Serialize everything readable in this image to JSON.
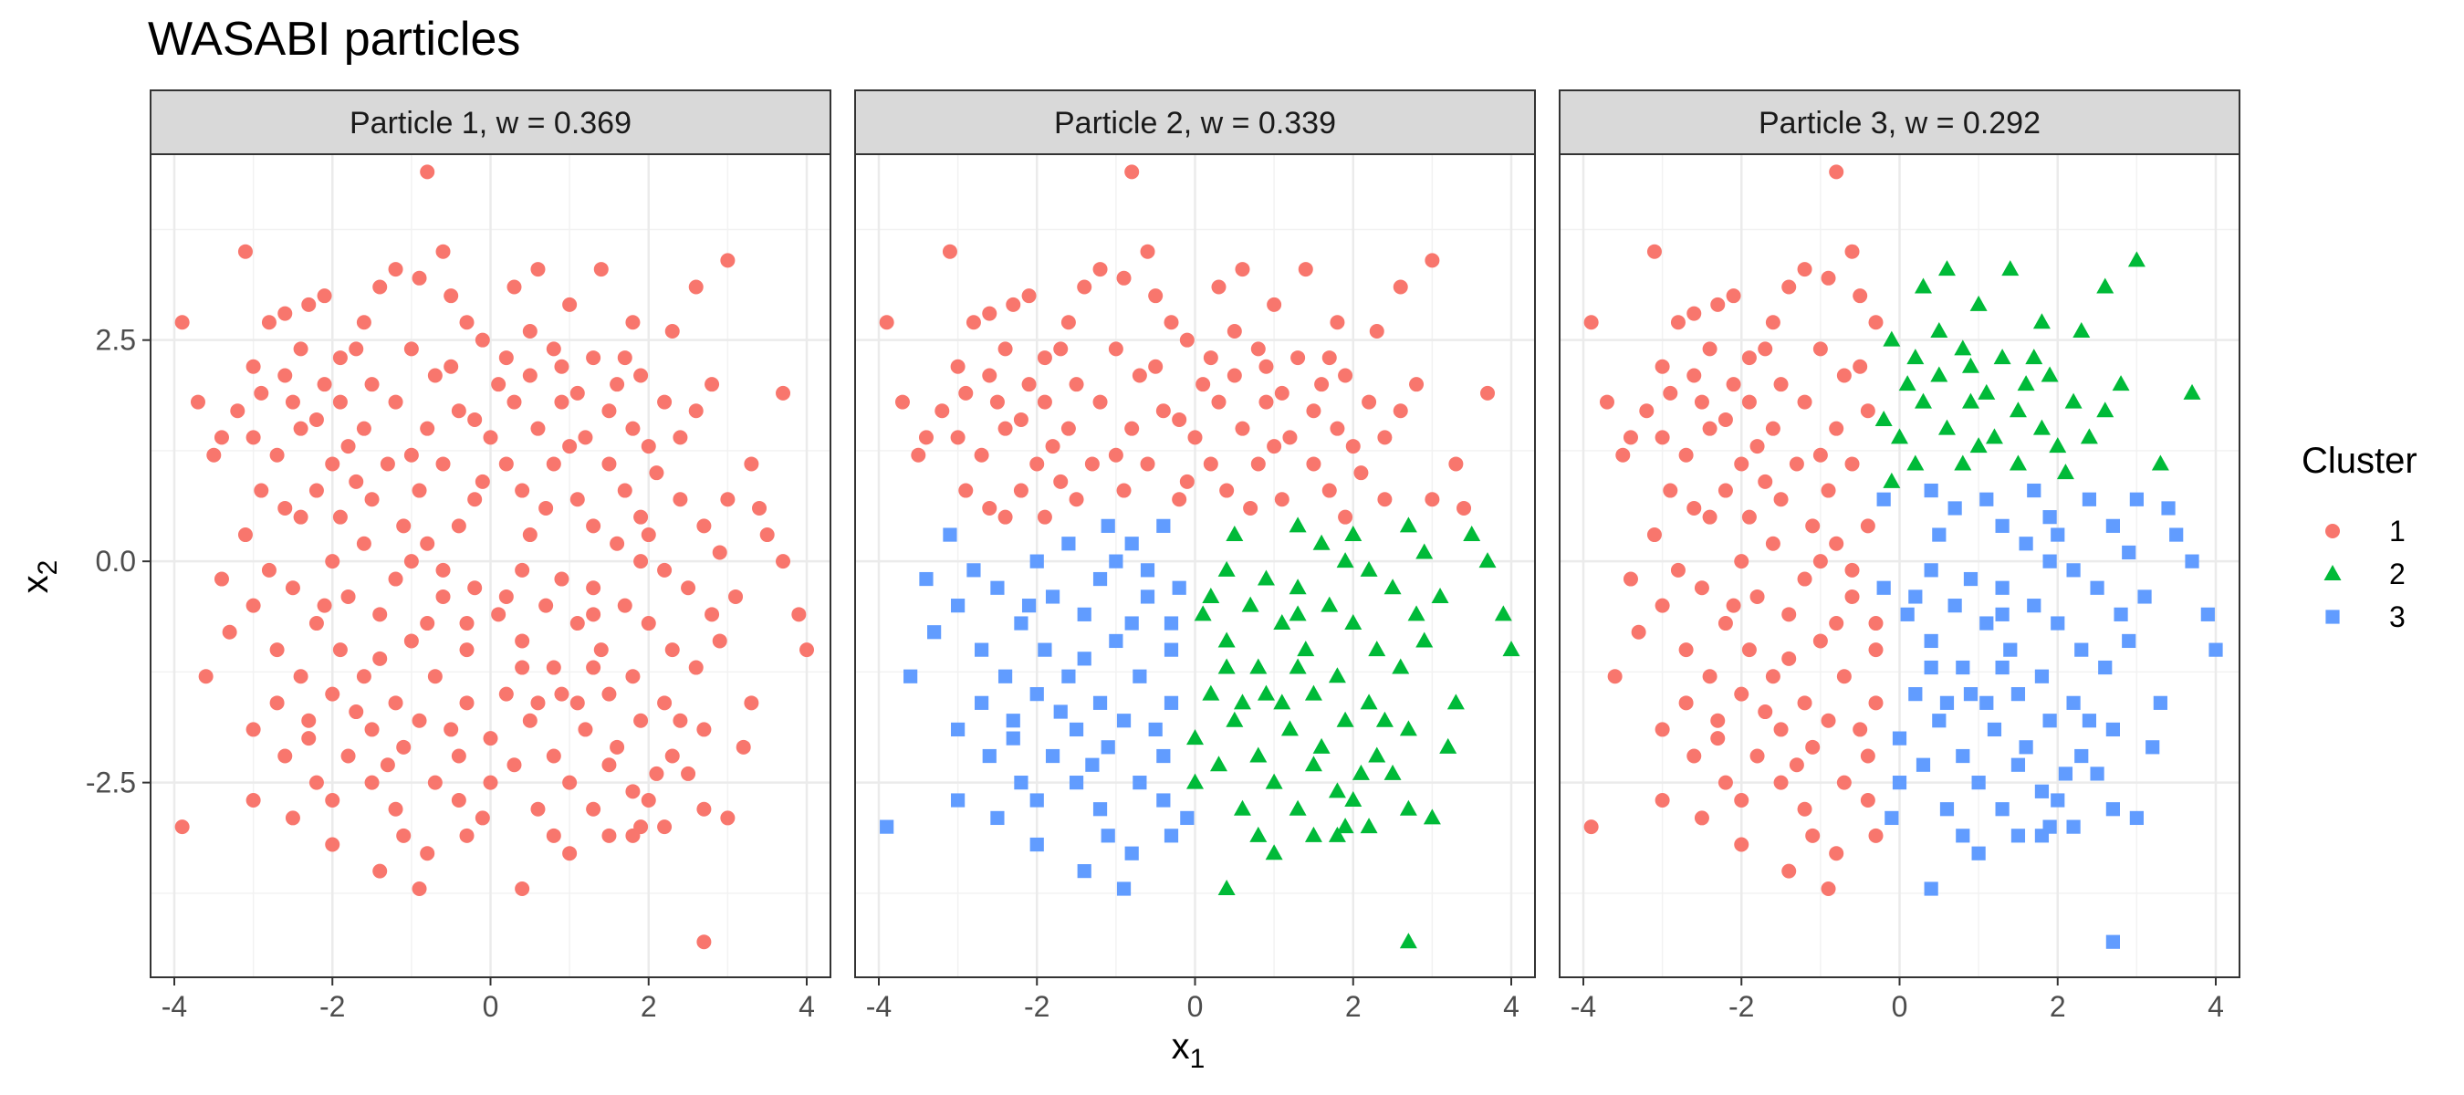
{
  "chart_data": {
    "type": "scatter",
    "title": "WASABI particles",
    "xlabel": "x",
    "xlabel_sub": "1",
    "ylabel": "x",
    "ylabel_sub": "2",
    "xlim": [
      -4.3,
      4.3
    ],
    "ylim": [
      -4.7,
      4.6
    ],
    "x_ticks": [
      -4,
      -2,
      0,
      2,
      4
    ],
    "x_tick_labels": [
      "-4",
      "-2",
      "0",
      "2",
      "4"
    ],
    "y_ticks": [
      -2.5,
      0,
      2.5
    ],
    "y_tick_labels": [
      "-2.5",
      "0.0",
      "2.5"
    ],
    "grid": true,
    "legend": {
      "title": "Cluster",
      "placement": "right",
      "entries": [
        {
          "label": "1",
          "color": "#F8766D",
          "shape": "circle"
        },
        {
          "label": "2",
          "color": "#00BA38",
          "shape": "triangle"
        },
        {
          "label": "3",
          "color": "#619CFF",
          "shape": "square"
        }
      ]
    },
    "panels": [
      {
        "label": "Particle 1, w = 0.369",
        "rule": "all1"
      },
      {
        "label": "Particle 2, w = 0.339",
        "rule": "p2"
      },
      {
        "label": "Particle 3, w = 0.292",
        "rule": "p3"
      }
    ],
    "points": [
      [
        -0.8,
        4.4
      ],
      [
        -0.6,
        3.5
      ],
      [
        3,
        3.4
      ],
      [
        -3.1,
        3.5
      ],
      [
        0.6,
        3.3
      ],
      [
        1.4,
        3.3
      ],
      [
        -1.2,
        3.3
      ],
      [
        -0.9,
        3.2
      ],
      [
        -1.4,
        3.1
      ],
      [
        0.3,
        3.1
      ],
      [
        -2.1,
        3.0
      ],
      [
        2.6,
        3.1
      ],
      [
        -2.3,
        2.9
      ],
      [
        1.0,
        2.9
      ],
      [
        -2.6,
        2.8
      ],
      [
        -2.8,
        2.7
      ],
      [
        -3.9,
        2.7
      ],
      [
        -1.6,
        2.7
      ],
      [
        -0.3,
        2.7
      ],
      [
        1.8,
        2.7
      ],
      [
        2.3,
        2.6
      ],
      [
        -0.1,
        2.5
      ],
      [
        0.8,
        2.4
      ],
      [
        -1.9,
        2.3
      ],
      [
        -1.0,
        2.4
      ],
      [
        1.3,
        2.3
      ],
      [
        -3.0,
        2.2
      ],
      [
        -2.6,
        2.1
      ],
      [
        -2.9,
        1.9
      ],
      [
        -2.1,
        2.0
      ],
      [
        -1.5,
        2.0
      ],
      [
        -0.7,
        2.1
      ],
      [
        0.1,
        2.0
      ],
      [
        0.5,
        2.1
      ],
      [
        1.6,
        2.0
      ],
      [
        1.9,
        2.1
      ],
      [
        2.8,
        2.0
      ],
      [
        3.7,
        1.9
      ],
      [
        -3.7,
        1.8
      ],
      [
        -2.5,
        1.8
      ],
      [
        -1.9,
        1.8
      ],
      [
        -1.2,
        1.8
      ],
      [
        -0.4,
        1.7
      ],
      [
        0.3,
        1.8
      ],
      [
        0.9,
        1.8
      ],
      [
        1.5,
        1.7
      ],
      [
        2.2,
        1.8
      ],
      [
        2.6,
        1.7
      ],
      [
        -3.4,
        1.4
      ],
      [
        -2.4,
        1.5
      ],
      [
        -1.6,
        1.5
      ],
      [
        -0.8,
        1.5
      ],
      [
        0.0,
        1.4
      ],
      [
        0.6,
        1.5
      ],
      [
        1.2,
        1.4
      ],
      [
        1.8,
        1.5
      ],
      [
        2.4,
        1.4
      ],
      [
        -3.0,
        1.4
      ],
      [
        -3.5,
        1.2
      ],
      [
        -2.7,
        1.2
      ],
      [
        -2.0,
        1.1
      ],
      [
        -1.3,
        1.1
      ],
      [
        -0.6,
        1.1
      ],
      [
        0.2,
        1.1
      ],
      [
        0.8,
        1.1
      ],
      [
        1.5,
        1.1
      ],
      [
        2.1,
        1.0
      ],
      [
        3.3,
        1.1
      ],
      [
        -2.9,
        0.8
      ],
      [
        -2.2,
        0.8
      ],
      [
        -1.5,
        0.7
      ],
      [
        -0.9,
        0.8
      ],
      [
        -0.2,
        0.7
      ],
      [
        0.4,
        0.8
      ],
      [
        1.1,
        0.7
      ],
      [
        1.7,
        0.8
      ],
      [
        2.4,
        0.7
      ],
      [
        3.0,
        0.7
      ],
      [
        -2.4,
        0.5
      ],
      [
        -1.9,
        0.5
      ],
      [
        -1.1,
        0.4
      ],
      [
        -0.4,
        0.4
      ],
      [
        0.5,
        0.3
      ],
      [
        1.3,
        0.4
      ],
      [
        2.0,
        0.3
      ],
      [
        2.7,
        0.4
      ],
      [
        3.4,
        0.6
      ],
      [
        3.5,
        0.3
      ],
      [
        -3.1,
        0.3
      ],
      [
        -1.6,
        0.2
      ],
      [
        -0.8,
        0.2
      ],
      [
        1.6,
        0.2
      ],
      [
        2.9,
        0.1
      ],
      [
        -0.6,
        -0.1
      ],
      [
        -2.8,
        -0.1
      ],
      [
        -2.0,
        0.0
      ],
      [
        0.9,
        -0.2
      ],
      [
        1.9,
        0.0
      ],
      [
        3.7,
        0.0
      ],
      [
        -1.2,
        -0.2
      ],
      [
        -0.2,
        -0.3
      ],
      [
        0.4,
        -0.1
      ],
      [
        1.3,
        -0.3
      ],
      [
        2.2,
        -0.1
      ],
      [
        -2.5,
        -0.3
      ],
      [
        -3.0,
        -0.5
      ],
      [
        -1.8,
        -0.4
      ],
      [
        -0.6,
        -0.4
      ],
      [
        0.7,
        -0.5
      ],
      [
        1.7,
        -0.5
      ],
      [
        2.5,
        -0.3
      ],
      [
        3.1,
        -0.4
      ],
      [
        3.9,
        -0.6
      ],
      [
        -3.3,
        -0.8
      ],
      [
        -2.2,
        -0.7
      ],
      [
        -1.4,
        -0.6
      ],
      [
        0.1,
        -0.6
      ],
      [
        1.1,
        -0.7
      ],
      [
        2.0,
        -0.7
      ],
      [
        -2.7,
        -1.0
      ],
      [
        -1.9,
        -1.0
      ],
      [
        -1.0,
        -0.9
      ],
      [
        -0.3,
        -1.0
      ],
      [
        0.4,
        -0.9
      ],
      [
        1.4,
        -1.0
      ],
      [
        2.3,
        -1.0
      ],
      [
        2.9,
        -0.9
      ],
      [
        4.0,
        -1.0
      ],
      [
        -3.6,
        -1.3
      ],
      [
        -2.4,
        -1.3
      ],
      [
        -1.6,
        -1.3
      ],
      [
        -0.7,
        -1.3
      ],
      [
        0.8,
        -1.2
      ],
      [
        1.8,
        -1.3
      ],
      [
        2.6,
        -1.2
      ],
      [
        -2.0,
        -1.5
      ],
      [
        -1.2,
        -1.6
      ],
      [
        -0.3,
        -1.6
      ],
      [
        0.2,
        -1.5
      ],
      [
        1.1,
        -1.6
      ],
      [
        1.5,
        -1.5
      ],
      [
        2.2,
        -1.6
      ],
      [
        -2.7,
        -1.6
      ],
      [
        -3.0,
        -1.9
      ],
      [
        -2.3,
        -1.8
      ],
      [
        -1.5,
        -1.9
      ],
      [
        -0.9,
        -1.8
      ],
      [
        0.5,
        -1.8
      ],
      [
        1.2,
        -1.9
      ],
      [
        1.9,
        -1.8
      ],
      [
        2.7,
        -1.9
      ],
      [
        3.2,
        -2.1
      ],
      [
        -2.6,
        -2.2
      ],
      [
        -1.8,
        -2.2
      ],
      [
        -1.1,
        -2.1
      ],
      [
        -0.4,
        -2.2
      ],
      [
        0.8,
        -2.2
      ],
      [
        1.5,
        -2.3
      ],
      [
        2.3,
        -2.2
      ],
      [
        -2.2,
        -2.5
      ],
      [
        -1.5,
        -2.5
      ],
      [
        -0.7,
        -2.5
      ],
      [
        0.0,
        -2.5
      ],
      [
        0.3,
        -2.3
      ],
      [
        1.0,
        -2.5
      ],
      [
        1.8,
        -2.6
      ],
      [
        2.5,
        -2.4
      ],
      [
        -3.0,
        -2.7
      ],
      [
        -2.0,
        -2.7
      ],
      [
        -1.2,
        -2.8
      ],
      [
        -0.4,
        -2.7
      ],
      [
        0.6,
        -2.8
      ],
      [
        1.3,
        -2.8
      ],
      [
        2.0,
        -2.7
      ],
      [
        2.7,
        -2.8
      ],
      [
        3.0,
        -2.9
      ],
      [
        -3.9,
        -3.0
      ],
      [
        -2.0,
        -3.2
      ],
      [
        -1.1,
        -3.1
      ],
      [
        -0.8,
        -3.3
      ],
      [
        -0.3,
        -3.1
      ],
      [
        0.8,
        -3.1
      ],
      [
        1.0,
        -3.3
      ],
      [
        1.9,
        -3.0
      ],
      [
        1.8,
        -3.1
      ],
      [
        -1.4,
        -3.5
      ],
      [
        -0.9,
        -3.7
      ],
      [
        0.4,
        -3.7
      ],
      [
        2.7,
        -4.3
      ],
      [
        -0.5,
        2.2
      ],
      [
        0.9,
        2.2
      ],
      [
        -1.7,
        2.4
      ],
      [
        0.2,
        2.3
      ],
      [
        1.1,
        1.9
      ],
      [
        -2.2,
        1.6
      ],
      [
        -0.2,
        1.6
      ],
      [
        1.0,
        1.3
      ],
      [
        -1.0,
        1.2
      ],
      [
        -0.1,
        0.9
      ],
      [
        0.7,
        0.6
      ],
      [
        -1.7,
        0.9
      ],
      [
        -2.6,
        0.6
      ],
      [
        1.9,
        0.5
      ],
      [
        -0.3,
        -0.7
      ],
      [
        0.9,
        -1.5
      ],
      [
        -1.4,
        -1.1
      ],
      [
        -2.3,
        -2.0
      ],
      [
        0.0,
        -2.0
      ],
      [
        1.6,
        -2.1
      ],
      [
        -1.3,
        -2.3
      ],
      [
        0.4,
        -1.2
      ],
      [
        2.4,
        -1.8
      ],
      [
        -0.5,
        -1.9
      ],
      [
        1.3,
        -0.6
      ],
      [
        -2.1,
        -0.5
      ],
      [
        2.8,
        -0.6
      ],
      [
        -0.8,
        -0.7
      ],
      [
        0.2,
        -0.4
      ],
      [
        -1.8,
        1.3
      ],
      [
        2.0,
        1.3
      ],
      [
        -0.5,
        3.0
      ],
      [
        1.7,
        2.3
      ],
      [
        -2.4,
        2.4
      ],
      [
        0.5,
        2.6
      ],
      [
        1.3,
        -1.2
      ],
      [
        0.6,
        -1.6
      ],
      [
        -1.7,
        -1.7
      ],
      [
        2.1,
        -2.4
      ],
      [
        -0.1,
        -2.9
      ],
      [
        1.5,
        -3.1
      ],
      [
        2.2,
        -3.0
      ],
      [
        -2.5,
        -2.9
      ],
      [
        -1.0,
        0.0
      ],
      [
        -3.4,
        -0.2
      ],
      [
        3.3,
        -1.6
      ],
      [
        -3.2,
        1.7
      ]
    ]
  }
}
